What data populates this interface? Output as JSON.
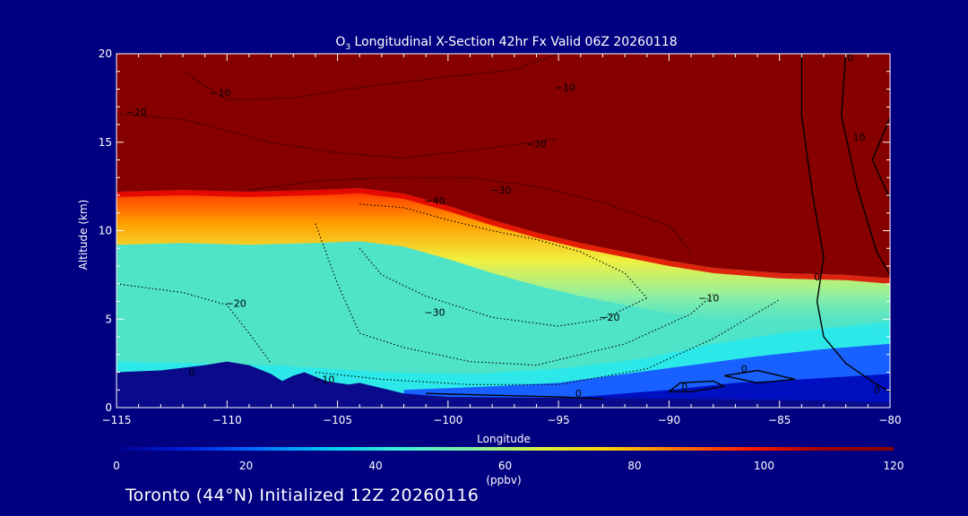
{
  "chart_data": {
    "type": "heatmap",
    "title": "O3 Longitudinal X-Section 42hr  Fx Valid 06Z 20260118",
    "title_parts": {
      "prefix": "O",
      "subscript": "3",
      "rest": " Longitudinal X-Section 42hr  Fx Valid 06Z 20260118"
    },
    "xlabel": "Longitude",
    "ylabel": "Altitude (km)",
    "xlim": [
      -115,
      -80
    ],
    "ylim": [
      0,
      20
    ],
    "x_ticks": [
      -115,
      -110,
      -105,
      -100,
      -95,
      -90,
      -85,
      -80
    ],
    "x_tick_labels": [
      "−115",
      "−110",
      "−105",
      "−100",
      "−95",
      "−90",
      "−85",
      "−80"
    ],
    "y_ticks": [
      0,
      5,
      10,
      15,
      20
    ],
    "y_tick_labels": [
      "0",
      "5",
      "10",
      "15",
      "20"
    ],
    "tropopause_km": [
      [
        -115,
        12.2
      ],
      [
        -112,
        12.3
      ],
      [
        -109,
        12.2
      ],
      [
        -106,
        12.3
      ],
      [
        -104,
        12.4
      ],
      [
        -102,
        12.1
      ],
      [
        -100,
        11.4
      ],
      [
        -98,
        10.6
      ],
      [
        -96,
        9.9
      ],
      [
        -94,
        9.3
      ],
      [
        -92,
        8.8
      ],
      [
        -90,
        8.3
      ],
      [
        -88,
        7.9
      ],
      [
        -85,
        7.6
      ],
      [
        -82,
        7.5
      ],
      [
        -80,
        7.3
      ]
    ],
    "terrain_km": [
      [
        -115,
        2.0
      ],
      [
        -113,
        2.1
      ],
      [
        -111,
        2.4
      ],
      [
        -110,
        2.6
      ],
      [
        -109,
        2.4
      ],
      [
        -108,
        1.9
      ],
      [
        -107.5,
        1.5
      ],
      [
        -107,
        1.8
      ],
      [
        -106.5,
        2.0
      ],
      [
        -105.5,
        1.5
      ],
      [
        -104.5,
        1.3
      ],
      [
        -104,
        1.4
      ],
      [
        -103,
        1.1
      ],
      [
        -102,
        0.8
      ],
      [
        -100,
        0.6
      ],
      [
        -95,
        0.55
      ],
      [
        -90,
        0.5
      ],
      [
        -85,
        0.45
      ],
      [
        -80,
        0.3
      ]
    ],
    "contours": [
      {
        "level": -10,
        "points": [
          [
            -112,
            19.0
          ],
          [
            -110,
            17.4
          ],
          [
            -107,
            17.5
          ],
          [
            -104,
            18.1
          ],
          [
            -100,
            18.7
          ],
          [
            -97,
            19.1
          ],
          [
            -95,
            20
          ]
        ]
      },
      {
        "level": -20,
        "points": [
          [
            -115,
            16.6
          ],
          [
            -112,
            16.3
          ],
          [
            -108,
            15.0
          ],
          [
            -105,
            14.4
          ],
          [
            -102,
            14.1
          ],
          [
            -98,
            14.7
          ],
          [
            -95,
            15.2
          ]
        ]
      },
      {
        "level": -30,
        "points": [
          [
            -109,
            12.3
          ],
          [
            -106,
            12.8
          ],
          [
            -103,
            13.0
          ],
          [
            -99,
            13.0
          ],
          [
            -96,
            12.5
          ],
          [
            -93,
            11.6
          ],
          [
            -90,
            10.3
          ],
          [
            -89,
            8.8
          ]
        ]
      },
      {
        "level": -40,
        "points": [
          [
            -104,
            11.5
          ],
          [
            -102,
            11.3
          ],
          [
            -100,
            10.6
          ],
          [
            -98,
            10.0
          ],
          [
            -96,
            9.5
          ],
          [
            -94,
            8.8
          ],
          [
            -92,
            7.6
          ],
          [
            -91,
            6.2
          ]
        ]
      },
      {
        "level": -20,
        "points": [
          [
            -115,
            7.0
          ],
          [
            -112,
            6.5
          ],
          [
            -110,
            5.8
          ],
          [
            -109,
            4.2
          ],
          [
            -108,
            2.5
          ]
        ]
      },
      {
        "level": -30,
        "points": [
          [
            -104,
            9.0
          ],
          [
            -103,
            7.5
          ],
          [
            -101,
            6.3
          ],
          [
            -98,
            5.1
          ],
          [
            -95,
            4.6
          ],
          [
            -93,
            5.0
          ],
          [
            -91,
            6.2
          ]
        ]
      },
      {
        "level": -20,
        "points": [
          [
            -106,
            10.4
          ],
          [
            -105,
            7.0
          ],
          [
            -104,
            4.2
          ],
          [
            -102,
            3.4
          ],
          [
            -99,
            2.6
          ],
          [
            -96,
            2.4
          ],
          [
            -92,
            3.6
          ],
          [
            -89,
            5.3
          ],
          [
            -88,
            6.4
          ]
        ]
      },
      {
        "level": -10,
        "points": [
          [
            -106,
            2.0
          ],
          [
            -103,
            1.6
          ],
          [
            -99,
            1.3
          ],
          [
            -95,
            1.3
          ],
          [
            -91,
            2.2
          ],
          [
            -88,
            3.9
          ],
          [
            -85,
            6.1
          ]
        ]
      },
      {
        "level": 0,
        "points": [
          [
            -101,
            0.8
          ],
          [
            -98,
            0.7
          ],
          [
            -95,
            0.6
          ],
          [
            -93,
            0.5
          ]
        ]
      },
      {
        "level": 0,
        "points": [
          [
            -84,
            20
          ],
          [
            -84,
            16.5
          ],
          [
            -83.5,
            12.0
          ],
          [
            -83,
            8.5
          ],
          [
            -83.3,
            6.0
          ],
          [
            -83.0,
            4.0
          ],
          [
            -82.0,
            2.5
          ],
          [
            -80.6,
            1.3
          ],
          [
            -80,
            0.9
          ]
        ]
      },
      {
        "level": 10,
        "points": [
          [
            -82,
            20
          ],
          [
            -82.2,
            16.5
          ],
          [
            -81.5,
            12.5
          ],
          [
            -80.6,
            8.8
          ],
          [
            -80,
            7.5
          ]
        ]
      },
      {
        "level": 20,
        "points": [
          [
            -80,
            16.4
          ],
          [
            -80.8,
            14.0
          ],
          [
            -80,
            11.8
          ]
        ]
      },
      {
        "level": 0,
        "points": [
          [
            -90,
            0.9
          ],
          [
            -89.5,
            1.4
          ],
          [
            -88,
            1.5
          ],
          [
            -87.5,
            1.2
          ],
          [
            -89,
            0.9
          ],
          [
            -90,
            0.9
          ]
        ]
      },
      {
        "level": 0,
        "points": [
          [
            -87.5,
            1.8
          ],
          [
            -86,
            2.1
          ],
          [
            -84.3,
            1.6
          ],
          [
            -86,
            1.4
          ],
          [
            -87.5,
            1.8
          ]
        ]
      }
    ],
    "contour_labels": [
      {
        "text": "−10",
        "x": -110.3,
        "y": 17.6
      },
      {
        "text": "−20",
        "x": -114.1,
        "y": 16.5
      },
      {
        "text": "−10",
        "x": -94.7,
        "y": 17.9
      },
      {
        "text": "−30",
        "x": -96.0,
        "y": 14.7
      },
      {
        "text": "−30",
        "x": -97.6,
        "y": 12.1
      },
      {
        "text": "−40",
        "x": -100.6,
        "y": 11.5
      },
      {
        "text": "−20",
        "x": -109.6,
        "y": 5.7
      },
      {
        "text": "−30",
        "x": -100.6,
        "y": 5.2
      },
      {
        "text": "−20",
        "x": -92.7,
        "y": 4.9
      },
      {
        "text": "−10",
        "x": -88.2,
        "y": 6.0
      },
      {
        "text": "−10",
        "x": -105.6,
        "y": 1.4
      },
      {
        "text": "0",
        "x": -111.6,
        "y": 1.8
      },
      {
        "text": "0",
        "x": -94.1,
        "y": 0.6
      },
      {
        "text": "0",
        "x": -89.3,
        "y": 1.0
      },
      {
        "text": "0",
        "x": -86.6,
        "y": 2.0
      },
      {
        "text": "0",
        "x": -83.3,
        "y": 7.2
      },
      {
        "text": "0",
        "x": -81.8,
        "y": 19.6
      },
      {
        "text": "10",
        "x": -81.4,
        "y": 15.1
      },
      {
        "text": "0",
        "x": -80.6,
        "y": 0.8
      }
    ],
    "colorbar": {
      "min": 0,
      "max": 120,
      "ticks": [
        0,
        20,
        40,
        60,
        80,
        100,
        120
      ],
      "tick_labels": [
        "0",
        "20",
        "40",
        "60",
        "80",
        "100",
        "120"
      ],
      "unit": "(ppbv)",
      "stops": [
        "#00008c",
        "#0020e0",
        "#0070ff",
        "#00c8f0",
        "#40f0d8",
        "#80f0a0",
        "#d8f040",
        "#ffd000",
        "#ff7000",
        "#ff1800",
        "#a00000",
        "#870000"
      ]
    },
    "field_colors": {
      "stratosphere": "#870000",
      "free_troposphere": "#4fe3c8",
      "low_cyan": "#28e8ec",
      "boundary_layer": "#1860ff",
      "deep_blue": "#0010c0",
      "terrain": "#0a0a8a"
    }
  },
  "footer_text": "Toronto (44°N) Initialized 12Z 20260116"
}
